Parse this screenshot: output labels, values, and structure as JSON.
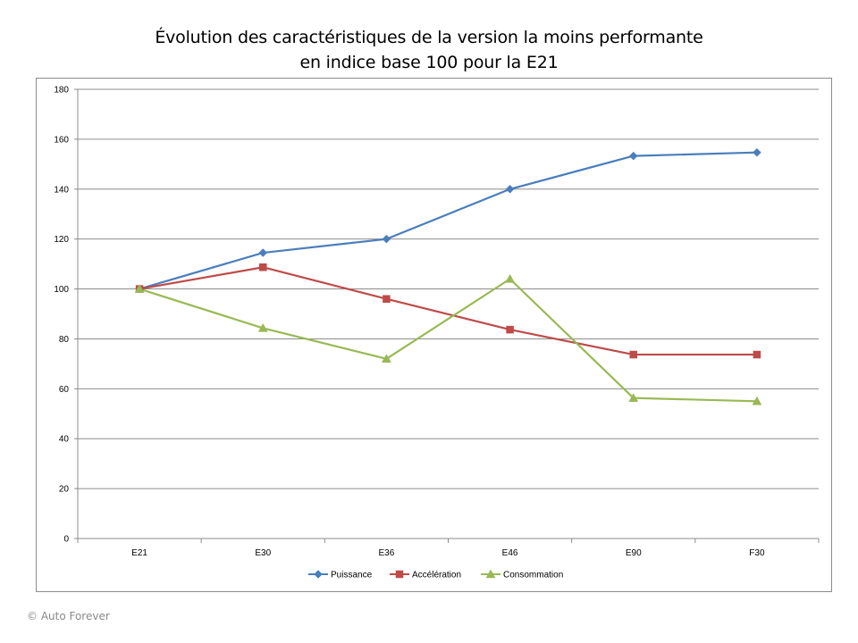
{
  "credit": "© Auto Forever",
  "chart_data": {
    "type": "line",
    "title": "Évolution des caractéristiques de la version la moins performante",
    "subtitle": "en indice base 100 pour la E21",
    "categories": [
      "E21",
      "E30",
      "E36",
      "E46",
      "E90",
      "F30"
    ],
    "ylim": [
      0,
      180
    ],
    "yticks": [
      0,
      20,
      40,
      60,
      80,
      100,
      120,
      140,
      160,
      180
    ],
    "grid": true,
    "legend_position": "bottom",
    "series": [
      {
        "name": "Puissance",
        "color": "#4a7ebb",
        "marker": "diamond",
        "values": [
          100,
          114.5,
          120,
          140,
          153.3,
          154.7
        ]
      },
      {
        "name": "Accélération",
        "color": "#be4b48",
        "marker": "square",
        "values": [
          100,
          108.7,
          96,
          83.7,
          73.7,
          73.7
        ]
      },
      {
        "name": "Consommation",
        "color": "#98b954",
        "marker": "triangle",
        "values": [
          100,
          84.3,
          72,
          104,
          56.3,
          55
        ]
      }
    ]
  }
}
